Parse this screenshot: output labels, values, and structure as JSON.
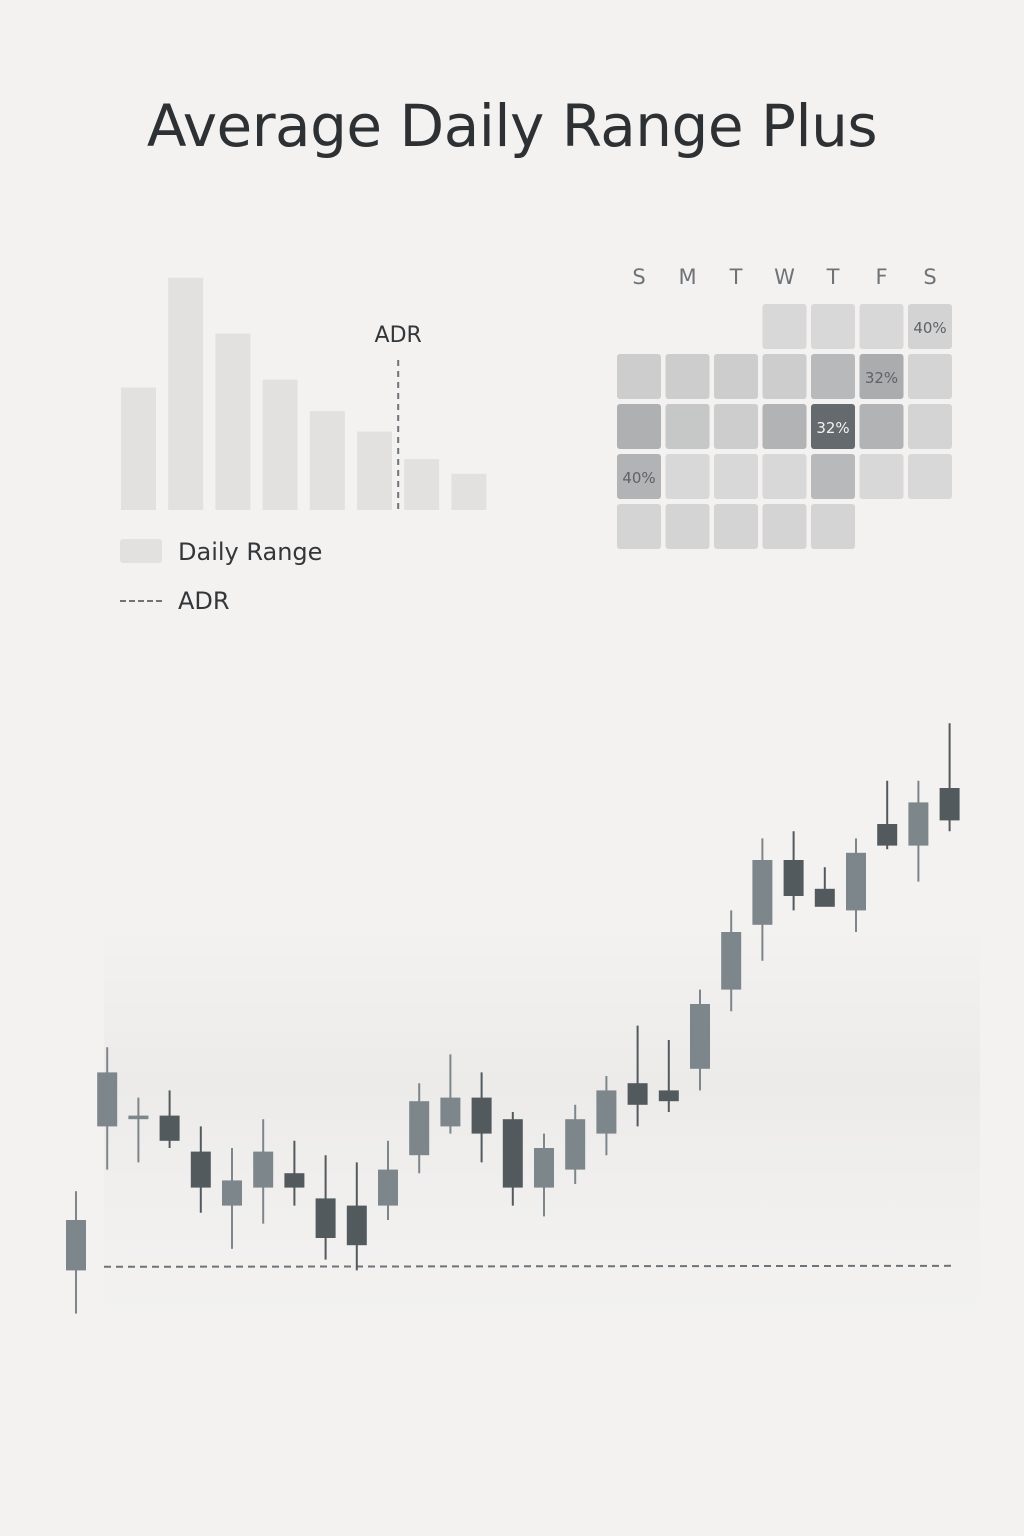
{
  "title": "Average Daily Range Plus",
  "chart_data": [
    {
      "type": "bar",
      "title": "",
      "values": [
        125,
        237,
        180,
        133,
        101,
        80,
        52,
        37
      ],
      "ylim": [
        0,
        250
      ],
      "adr_marker_label": "ADR",
      "adr_marker_after_bar": 6,
      "legend": [
        {
          "label": "Daily Range",
          "kind": "bar"
        },
        {
          "label": "ADR",
          "kind": "dashed-line"
        }
      ],
      "bar_color": "#e2e1e0",
      "grid": false,
      "legend_position": "bottom-left"
    },
    {
      "type": "heatmap",
      "title": "",
      "columns": [
        "S",
        "M",
        "T",
        "W",
        "T",
        "F",
        "S"
      ],
      "rows": [
        [
          null,
          null,
          null,
          0.12,
          0.12,
          0.12,
          0.16
        ],
        [
          0.2,
          0.2,
          0.2,
          0.2,
          0.35,
          0.45,
          0.15
        ],
        [
          0.42,
          0.25,
          0.2,
          0.4,
          0.95,
          0.4,
          0.15
        ],
        [
          0.4,
          0.12,
          0.12,
          0.12,
          0.35,
          0.12,
          0.12
        ],
        [
          0.15,
          0.15,
          0.15,
          0.15,
          0.15,
          null,
          null
        ]
      ],
      "labels": [
        {
          "row": 0,
          "col": 6,
          "text": "40%"
        },
        {
          "row": 1,
          "col": 5,
          "text": "32%"
        },
        {
          "row": 2,
          "col": 4,
          "text": "32%"
        },
        {
          "row": 3,
          "col": 0,
          "text": "40%"
        }
      ],
      "color_low": "#e9e8e7",
      "color_high": "#5d6367"
    },
    {
      "type": "candlestick",
      "title": "",
      "ylim": [
        0,
        100
      ],
      "adr_level": 18.5,
      "candles": [
        {
          "o": 18,
          "h": 29,
          "l": 12,
          "c": 25
        },
        {
          "o": 38,
          "h": 49,
          "l": 32,
          "c": 45.5
        },
        {
          "o": 39,
          "h": 42,
          "l": 33,
          "c": 39.5
        },
        {
          "o": 39.5,
          "h": 43,
          "l": 35,
          "c": 36
        },
        {
          "o": 34.5,
          "h": 38,
          "l": 26,
          "c": 29.5
        },
        {
          "o": 27,
          "h": 35,
          "l": 21,
          "c": 30.5
        },
        {
          "o": 29.5,
          "h": 39,
          "l": 24.5,
          "c": 34.5
        },
        {
          "o": 31.5,
          "h": 36,
          "l": 27,
          "c": 29.5
        },
        {
          "o": 28,
          "h": 34,
          "l": 19.5,
          "c": 22.5
        },
        {
          "o": 27,
          "h": 33,
          "l": 18,
          "c": 21.5
        },
        {
          "o": 27,
          "h": 36,
          "l": 25,
          "c": 32
        },
        {
          "o": 34,
          "h": 44,
          "l": 31.5,
          "c": 41.5
        },
        {
          "o": 38,
          "h": 48,
          "l": 37,
          "c": 42
        },
        {
          "o": 42,
          "h": 45.5,
          "l": 33,
          "c": 37
        },
        {
          "o": 39,
          "h": 40,
          "l": 27,
          "c": 29.5
        },
        {
          "o": 29.5,
          "h": 37,
          "l": 25.5,
          "c": 35
        },
        {
          "o": 32,
          "h": 41,
          "l": 30,
          "c": 39
        },
        {
          "o": 37,
          "h": 45,
          "l": 34,
          "c": 43
        },
        {
          "o": 44,
          "h": 52,
          "l": 38,
          "c": 41
        },
        {
          "o": 43,
          "h": 50,
          "l": 40,
          "c": 41.5
        },
        {
          "o": 46,
          "h": 57,
          "l": 43,
          "c": 55
        },
        {
          "o": 57,
          "h": 68,
          "l": 54,
          "c": 65
        },
        {
          "o": 66,
          "h": 78,
          "l": 61,
          "c": 75
        },
        {
          "o": 75,
          "h": 79,
          "l": 68,
          "c": 70
        },
        {
          "o": 71,
          "h": 74,
          "l": 69,
          "c": 68.5
        },
        {
          "o": 68,
          "h": 78,
          "l": 65,
          "c": 76
        },
        {
          "o": 80,
          "h": 86,
          "l": 76.5,
          "c": 77
        },
        {
          "o": 77,
          "h": 86,
          "l": 72,
          "c": 83
        },
        {
          "o": 85,
          "h": 94,
          "l": 79,
          "c": 80.5
        }
      ],
      "up_color": "#7d868b",
      "down_color": "#525a5e",
      "adr_color": "#6e7377"
    }
  ]
}
